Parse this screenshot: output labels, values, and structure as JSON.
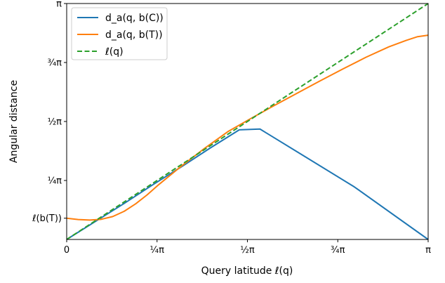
{
  "chart_data": {
    "type": "line",
    "xlabel": "Query latitude ℓ(q)",
    "ylabel": "Angular distance",
    "xlim": [
      0,
      3.14159
    ],
    "ylim": [
      0,
      3.14159
    ],
    "grid": false,
    "legend_placement": "top-left",
    "x_ticks": [
      {
        "value": 0,
        "label": "0"
      },
      {
        "value": 0.7854,
        "label": "¼π"
      },
      {
        "value": 1.5708,
        "label": "½π"
      },
      {
        "value": 2.3562,
        "label": "¾π"
      },
      {
        "value": 3.14159,
        "label": "π"
      }
    ],
    "y_ticks": [
      {
        "value": 0.283,
        "label": "ℓ(b(T))"
      },
      {
        "value": 0.7854,
        "label": "¼π"
      },
      {
        "value": 1.5708,
        "label": "½π"
      },
      {
        "value": 2.3562,
        "label": "¾π"
      },
      {
        "value": 3.14159,
        "label": "π"
      }
    ],
    "series": [
      {
        "name": "d_a(q, b(C))",
        "color": "#1f77b4",
        "style": "solid",
        "x": [
          0,
          0.25,
          0.5,
          0.75,
          1.0,
          1.25,
          1.5,
          1.68,
          2.0,
          2.5,
          3.14159
        ],
        "y": [
          0,
          0.24,
          0.48,
          0.73,
          0.97,
          1.22,
          1.46,
          1.47,
          1.17,
          0.7,
          0.0
        ]
      },
      {
        "name": "d_a(q, b(T))",
        "color": "#ff7f0e",
        "style": "solid",
        "x": [
          0,
          0.1,
          0.2,
          0.3,
          0.4,
          0.5,
          0.6,
          0.7,
          0.8,
          1.0,
          1.2,
          1.4,
          1.6,
          1.8,
          2.0,
          2.2,
          2.4,
          2.6,
          2.8,
          2.95,
          3.05,
          3.14159
        ],
        "y": [
          0.283,
          0.265,
          0.258,
          0.268,
          0.305,
          0.375,
          0.475,
          0.595,
          0.73,
          0.98,
          1.215,
          1.435,
          1.61,
          1.78,
          1.945,
          2.11,
          2.27,
          2.425,
          2.565,
          2.65,
          2.7,
          2.72
        ]
      },
      {
        "name": "ℓ(q)",
        "color": "#2ca02c",
        "style": "dashed",
        "x": [
          0,
          3.14159
        ],
        "y": [
          0,
          3.14159
        ]
      }
    ]
  }
}
